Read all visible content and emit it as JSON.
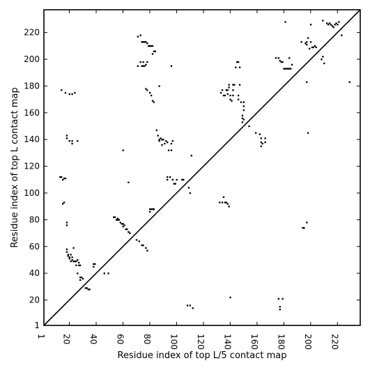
{
  "chart_data": {
    "type": "scatter",
    "title": "",
    "xlabel": "Residue index of top L/5 contact map",
    "ylabel": "Residue index of top L contact map",
    "xlim": [
      1,
      237
    ],
    "ylim": [
      1,
      237
    ],
    "xticks": [
      1,
      20,
      40,
      60,
      80,
      100,
      120,
      140,
      160,
      180,
      200,
      220
    ],
    "yticks": [
      1,
      20,
      40,
      60,
      80,
      100,
      120,
      140,
      160,
      180,
      200,
      220
    ],
    "xtick_labels": [
      "1",
      "20",
      "40",
      "60",
      "80",
      "100",
      "120",
      "140",
      "160",
      "180",
      "200",
      "220"
    ],
    "ytick_labels": [
      "1",
      "20",
      "40",
      "60",
      "80",
      "100",
      "120",
      "140",
      "160",
      "180",
      "200",
      "220"
    ],
    "x_tick_label_rotation": 90,
    "diagonal": true,
    "marker": "square",
    "marker_color": "#000000",
    "grid": false,
    "series": [
      {
        "name": "",
        "points": [
          [
            13,
            112
          ],
          [
            14,
            112
          ],
          [
            15,
            110
          ],
          [
            16,
            111
          ],
          [
            17,
            111
          ],
          [
            15,
            92
          ],
          [
            16,
            93
          ],
          [
            18,
            76
          ],
          [
            18,
            78
          ],
          [
            18,
            56
          ],
          [
            18,
            58
          ],
          [
            19,
            53
          ],
          [
            19,
            54
          ],
          [
            20,
            51
          ],
          [
            20,
            52
          ],
          [
            21,
            49
          ],
          [
            21,
            54
          ],
          [
            22,
            50
          ],
          [
            22,
            52
          ],
          [
            23,
            49
          ],
          [
            23,
            59
          ],
          [
            24,
            49
          ],
          [
            25,
            46
          ],
          [
            25,
            49
          ],
          [
            26,
            40
          ],
          [
            26,
            50
          ],
          [
            27,
            46
          ],
          [
            27,
            48
          ],
          [
            28,
            46
          ],
          [
            28,
            35
          ],
          [
            28,
            37
          ],
          [
            29,
            37
          ],
          [
            30,
            36
          ],
          [
            32,
            29
          ],
          [
            33,
            29
          ],
          [
            34,
            28
          ],
          [
            35,
            28
          ],
          [
            38,
            45
          ],
          [
            38,
            47
          ],
          [
            39,
            47
          ],
          [
            46,
            40
          ],
          [
            49,
            40
          ],
          [
            53,
            82
          ],
          [
            54,
            82
          ],
          [
            55,
            80
          ],
          [
            56,
            80
          ],
          [
            56,
            81
          ],
          [
            57,
            80
          ],
          [
            58,
            78
          ],
          [
            59,
            77
          ],
          [
            60,
            75
          ],
          [
            60,
            77
          ],
          [
            61,
            76
          ],
          [
            62,
            73
          ],
          [
            63,
            73
          ],
          [
            64,
            71
          ],
          [
            65,
            70
          ],
          [
            70,
            65
          ],
          [
            72,
            64
          ],
          [
            74,
            61
          ],
          [
            75,
            61
          ],
          [
            77,
            59
          ],
          [
            78,
            57
          ],
          [
            80,
            86
          ],
          [
            80,
            88
          ],
          [
            81,
            88
          ],
          [
            82,
            88
          ],
          [
            83,
            88
          ],
          [
            14,
            177
          ],
          [
            17,
            175
          ],
          [
            20,
            174
          ],
          [
            22,
            174
          ],
          [
            24,
            175
          ],
          [
            18,
            141
          ],
          [
            18,
            143
          ],
          [
            20,
            139
          ],
          [
            22,
            139
          ],
          [
            22,
            137
          ],
          [
            26,
            139
          ],
          [
            60,
            132
          ],
          [
            64,
            108
          ],
          [
            71,
            217
          ],
          [
            73,
            218
          ],
          [
            74,
            213
          ],
          [
            75,
            213
          ],
          [
            76,
            213
          ],
          [
            77,
            213
          ],
          [
            78,
            212
          ],
          [
            79,
            210
          ],
          [
            80,
            210
          ],
          [
            81,
            210
          ],
          [
            82,
            210
          ],
          [
            83,
            206
          ],
          [
            84,
            206
          ],
          [
            82,
            204
          ],
          [
            71,
            195
          ],
          [
            73,
            198
          ],
          [
            74,
            195
          ],
          [
            75,
            198
          ],
          [
            75,
            195
          ],
          [
            76,
            195
          ],
          [
            78,
            198
          ],
          [
            77,
            196
          ],
          [
            77,
            178
          ],
          [
            78,
            177
          ],
          [
            80,
            175
          ],
          [
            81,
            173
          ],
          [
            82,
            169
          ],
          [
            83,
            168
          ],
          [
            87,
            180
          ],
          [
            85,
            147
          ],
          [
            86,
            143
          ],
          [
            87,
            139
          ],
          [
            87,
            140
          ],
          [
            88,
            141
          ],
          [
            89,
            140
          ],
          [
            90,
            140
          ],
          [
            89,
            136
          ],
          [
            91,
            137
          ],
          [
            92,
            139
          ],
          [
            93,
            138
          ],
          [
            94,
            132
          ],
          [
            96,
            132
          ],
          [
            96,
            137
          ],
          [
            97,
            139
          ],
          [
            93,
            112
          ],
          [
            93,
            110
          ],
          [
            95,
            112
          ],
          [
            97,
            110
          ],
          [
            98,
            107
          ],
          [
            99,
            107
          ],
          [
            100,
            110
          ],
          [
            104,
            110
          ],
          [
            105,
            110
          ],
          [
            109,
            104
          ],
          [
            111,
            128
          ],
          [
            110,
            100
          ],
          [
            96,
            195
          ],
          [
            108,
            16
          ],
          [
            110,
            16
          ],
          [
            112,
            14
          ],
          [
            132,
            93
          ],
          [
            134,
            93
          ],
          [
            135,
            97
          ],
          [
            136,
            93
          ],
          [
            137,
            93
          ],
          [
            138,
            92
          ],
          [
            139,
            90
          ],
          [
            140,
            22
          ],
          [
            133,
            175
          ],
          [
            134,
            177
          ],
          [
            135,
            173
          ],
          [
            136,
            173
          ],
          [
            137,
            177
          ],
          [
            138,
            174
          ],
          [
            138,
            177
          ],
          [
            139,
            179
          ],
          [
            139,
            181
          ],
          [
            140,
            173
          ],
          [
            140,
            170
          ],
          [
            141,
            169
          ],
          [
            142,
            173
          ],
          [
            142,
            177
          ],
          [
            142,
            181
          ],
          [
            143,
            181
          ],
          [
            144,
            194
          ],
          [
            145,
            198
          ],
          [
            146,
            198
          ],
          [
            147,
            194
          ],
          [
            146,
            173
          ],
          [
            146,
            170
          ],
          [
            147,
            181
          ],
          [
            148,
            168
          ],
          [
            150,
            165
          ],
          [
            150,
            168
          ],
          [
            150,
            162
          ],
          [
            149,
            158
          ],
          [
            149,
            156
          ],
          [
            150,
            155
          ],
          [
            149,
            153
          ],
          [
            154,
            150
          ],
          [
            159,
            145
          ],
          [
            162,
            144
          ],
          [
            163,
            141
          ],
          [
            163,
            138
          ],
          [
            163,
            135
          ],
          [
            164,
            137
          ],
          [
            166,
            141
          ],
          [
            166,
            138
          ],
          [
            174,
            201
          ],
          [
            176,
            201
          ],
          [
            177,
            199
          ],
          [
            178,
            198
          ],
          [
            179,
            198
          ],
          [
            180,
            193
          ],
          [
            181,
            193
          ],
          [
            182,
            193
          ],
          [
            183,
            193
          ],
          [
            184,
            193
          ],
          [
            185,
            193
          ],
          [
            186,
            196
          ],
          [
            184,
            201
          ],
          [
            181,
            228
          ],
          [
            176,
            21
          ],
          [
            177,
            15
          ],
          [
            177,
            13
          ],
          [
            179,
            21
          ],
          [
            193,
            213
          ],
          [
            194,
            74
          ],
          [
            195,
            74
          ],
          [
            196,
            212
          ],
          [
            197,
            211
          ],
          [
            197,
            213
          ],
          [
            198,
            216
          ],
          [
            197,
            183
          ],
          [
            198,
            145
          ],
          [
            199,
            208
          ],
          [
            200,
            213
          ],
          [
            200,
            226
          ],
          [
            201,
            209
          ],
          [
            202,
            209
          ],
          [
            203,
            210
          ],
          [
            204,
            209
          ],
          [
            197,
            78
          ],
          [
            208,
            200
          ],
          [
            209,
            229
          ],
          [
            209,
            202
          ],
          [
            212,
            227
          ],
          [
            213,
            226
          ],
          [
            214,
            227
          ],
          [
            215,
            226
          ],
          [
            216,
            225
          ],
          [
            217,
            224
          ],
          [
            218,
            226
          ],
          [
            219,
            227
          ],
          [
            220,
            226
          ],
          [
            221,
            228
          ],
          [
            223,
            218
          ],
          [
            229,
            183
          ],
          [
            210,
            197
          ]
        ]
      }
    ]
  }
}
